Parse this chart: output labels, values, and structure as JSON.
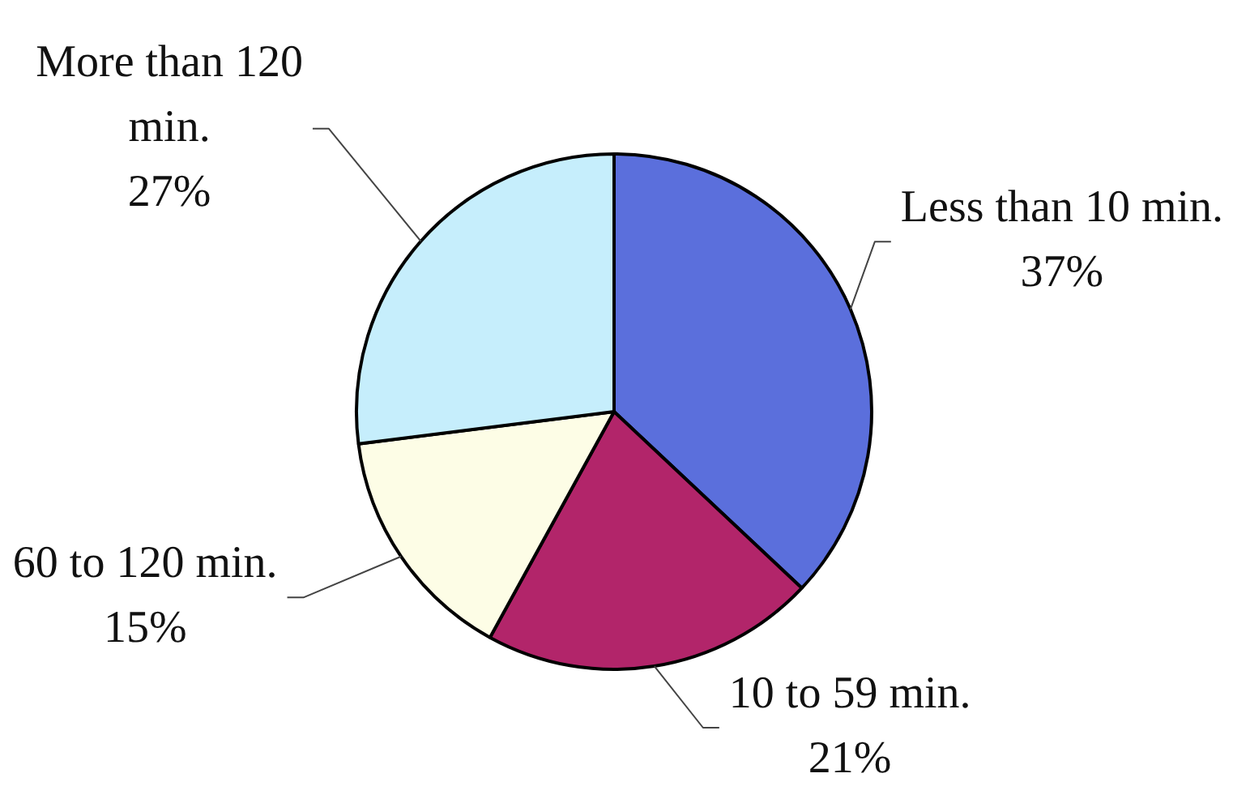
{
  "chart_data": {
    "type": "pie",
    "categories": [
      "Less than 10 min.",
      "10 to 59 min.",
      "60 to 120 min.",
      "More than 120 min."
    ],
    "values": [
      37,
      21,
      15,
      27
    ],
    "colors": [
      "#5b6fdc",
      "#b2256a",
      "#fdfde6",
      "#c6eefc"
    ],
    "value_labels": [
      "37%",
      "21%",
      "15%",
      "27%"
    ]
  }
}
